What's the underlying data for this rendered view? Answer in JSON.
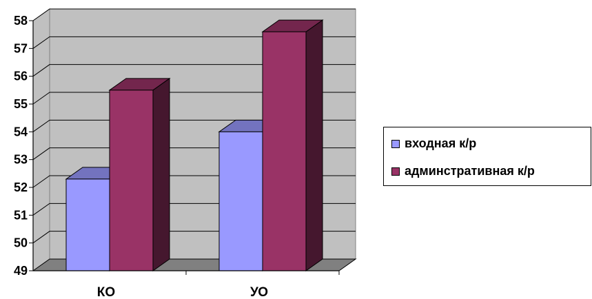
{
  "chart_data": {
    "type": "bar",
    "categories": [
      "КО",
      "УО"
    ],
    "series": [
      {
        "name": "входная к/р",
        "values": [
          52.3,
          54.0
        ],
        "color": "#9999ff"
      },
      {
        "name": "админстративная к/р",
        "values": [
          55.5,
          57.6
        ],
        "color": "#993366"
      }
    ],
    "ylim": [
      49,
      58
    ],
    "yticks": [
      "49",
      "50",
      "51",
      "52",
      "53",
      "54",
      "55",
      "56",
      "57",
      "58"
    ],
    "grid": true,
    "three_d": true,
    "legend_position": "right",
    "title": "",
    "xlabel": "",
    "ylabel": ""
  }
}
